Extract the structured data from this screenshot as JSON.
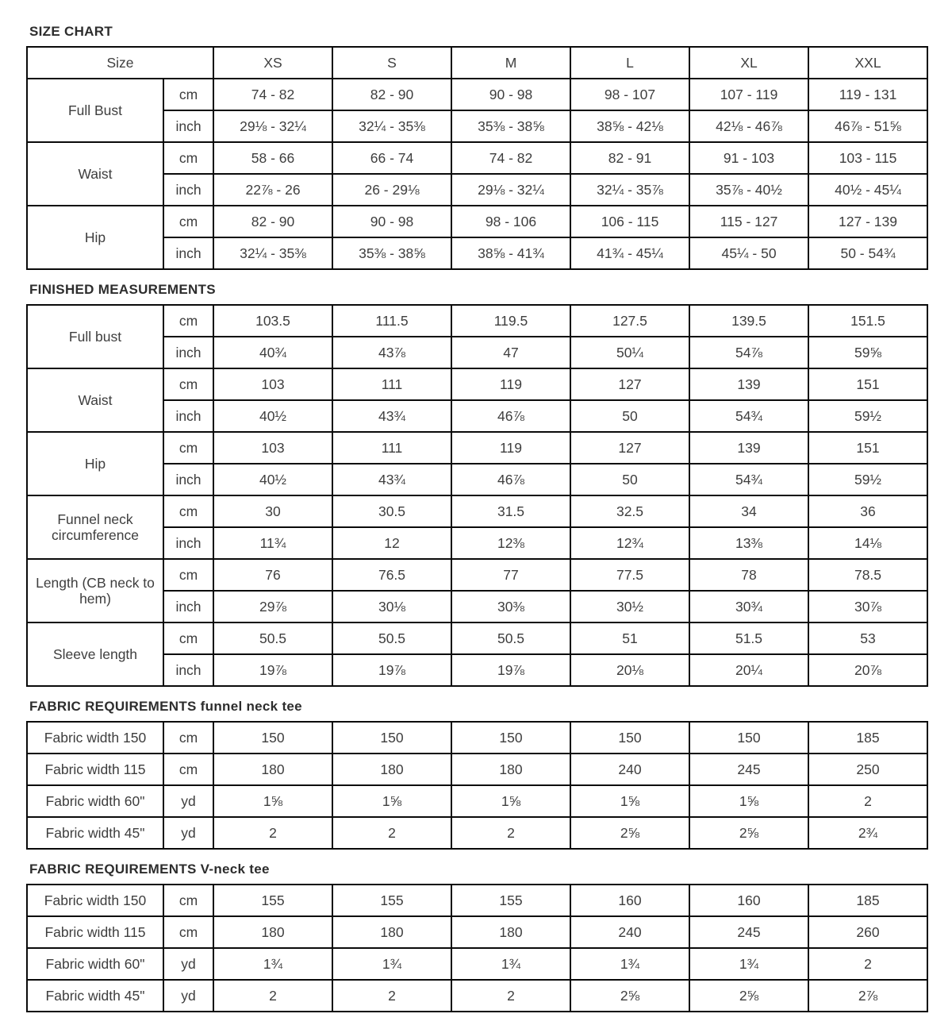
{
  "page": {
    "background": "#ffffff",
    "border_color": "#0a0a0a",
    "title_color": "#2d2d2d",
    "text_color": "#3e3e3e"
  },
  "tables": [
    {
      "title": "SIZE CHART",
      "header": {
        "label": "Size",
        "columns": [
          "XS",
          "S",
          "M",
          "L",
          "XL",
          "XXL"
        ]
      },
      "groups": [
        {
          "label": "Full Bust",
          "rows": [
            {
              "unit": "cm",
              "values": [
                "74 - 82",
                "82 - 90",
                "90 - 98",
                "98 - 107",
                "107 - 119",
                "119 - 131"
              ]
            },
            {
              "unit": "inch",
              "values": [
                "29⅛ - 32¼",
                "32¼ - 35⅜",
                "35⅜ - 38⅝",
                "38⅝ - 42⅛",
                "42⅛ - 46⅞",
                "46⅞ - 51⅝"
              ]
            }
          ]
        },
        {
          "label": "Waist",
          "rows": [
            {
              "unit": "cm",
              "values": [
                "58 - 66",
                "66 - 74",
                "74 - 82",
                "82 - 91",
                "91 - 103",
                "103 - 115"
              ]
            },
            {
              "unit": "inch",
              "values": [
                "22⅞ - 26",
                "26 - 29⅛",
                "29⅛ - 32¼",
                "32¼ - 35⅞",
                "35⅞ - 40½",
                "40½ - 45¼"
              ]
            }
          ]
        },
        {
          "label": "Hip",
          "rows": [
            {
              "unit": "cm",
              "values": [
                "82 - 90",
                "90 - 98",
                "98 - 106",
                "106 - 115",
                "115 - 127",
                "127 - 139"
              ]
            },
            {
              "unit": "inch",
              "values": [
                "32¼ - 35⅜",
                "35⅜ - 38⅝",
                "38⅝ - 41¾",
                "41¾ - 45¼",
                "45¼ - 50",
                "50 - 54¾"
              ]
            }
          ]
        }
      ]
    },
    {
      "title": "FINISHED MEASUREMENTS",
      "groups": [
        {
          "label": "Full bust",
          "rows": [
            {
              "unit": "cm",
              "values": [
                "103.5",
                "111.5",
                "119.5",
                "127.5",
                "139.5",
                "151.5"
              ]
            },
            {
              "unit": "inch",
              "values": [
                "40¾",
                "43⅞",
                "47",
                "50¼",
                "54⅞",
                "59⅝"
              ]
            }
          ]
        },
        {
          "label": "Waist",
          "rows": [
            {
              "unit": "cm",
              "values": [
                "103",
                "111",
                "119",
                "127",
                "139",
                "151"
              ]
            },
            {
              "unit": "inch",
              "values": [
                "40½",
                "43¾",
                "46⅞",
                "50",
                "54¾",
                "59½"
              ]
            }
          ]
        },
        {
          "label": "Hip",
          "rows": [
            {
              "unit": "cm",
              "values": [
                "103",
                "111",
                "119",
                "127",
                "139",
                "151"
              ]
            },
            {
              "unit": "inch",
              "values": [
                "40½",
                "43¾",
                "46⅞",
                "50",
                "54¾",
                "59½"
              ]
            }
          ]
        },
        {
          "label": "Funnel neck circumference",
          "rows": [
            {
              "unit": "cm",
              "values": [
                "30",
                "30.5",
                "31.5",
                "32.5",
                "34",
                "36"
              ]
            },
            {
              "unit": "inch",
              "values": [
                "11¾",
                "12",
                "12⅜",
                "12¾",
                "13⅜",
                "14⅛"
              ]
            }
          ]
        },
        {
          "label": "Length (CB neck to hem)",
          "rows": [
            {
              "unit": "cm",
              "values": [
                "76",
                "76.5",
                "77",
                "77.5",
                "78",
                "78.5"
              ]
            },
            {
              "unit": "inch",
              "values": [
                "29⅞",
                "30⅛",
                "30⅜",
                "30½",
                "30¾",
                "30⅞"
              ]
            }
          ]
        },
        {
          "label": "Sleeve length",
          "rows": [
            {
              "unit": "cm",
              "values": [
                "50.5",
                "50.5",
                "50.5",
                "51",
                "51.5",
                "53"
              ]
            },
            {
              "unit": "inch",
              "values": [
                "19⅞",
                "19⅞",
                "19⅞",
                "20⅛",
                "20¼",
                "20⅞"
              ]
            }
          ]
        }
      ]
    },
    {
      "title": "FABRIC REQUIREMENTS funnel neck tee",
      "groups": [
        {
          "label": "Fabric width 150",
          "rows": [
            {
              "unit": "cm",
              "values": [
                "150",
                "150",
                "150",
                "150",
                "150",
                "185"
              ]
            }
          ]
        },
        {
          "label": "Fabric width 115",
          "rows": [
            {
              "unit": "cm",
              "values": [
                "180",
                "180",
                "180",
                "240",
                "245",
                "250"
              ]
            }
          ]
        },
        {
          "label": "Fabric width 60\"",
          "rows": [
            {
              "unit": "yd",
              "values": [
                "1⅝",
                "1⅝",
                "1⅝",
                "1⅝",
                "1⅝",
                "2"
              ]
            }
          ]
        },
        {
          "label": "Fabric width 45\"",
          "rows": [
            {
              "unit": "yd",
              "values": [
                "2",
                "2",
                "2",
                "2⅝",
                "2⅝",
                "2¾"
              ]
            }
          ]
        }
      ]
    },
    {
      "title": "FABRIC REQUIREMENTS V-neck tee",
      "groups": [
        {
          "label": "Fabric width 150",
          "rows": [
            {
              "unit": "cm",
              "values": [
                "155",
                "155",
                "155",
                "160",
                "160",
                "185"
              ]
            }
          ]
        },
        {
          "label": "Fabric width 115",
          "rows": [
            {
              "unit": "cm",
              "values": [
                "180",
                "180",
                "180",
                "240",
                "245",
                "260"
              ]
            }
          ]
        },
        {
          "label": "Fabric width 60\"",
          "rows": [
            {
              "unit": "yd",
              "values": [
                "1¾",
                "1¾",
                "1¾",
                "1¾",
                "1¾",
                "2"
              ]
            }
          ]
        },
        {
          "label": "Fabric width 45\"",
          "rows": [
            {
              "unit": "yd",
              "values": [
                "2",
                "2",
                "2",
                "2⅝",
                "2⅝",
                "2⅞"
              ]
            }
          ]
        }
      ]
    }
  ]
}
